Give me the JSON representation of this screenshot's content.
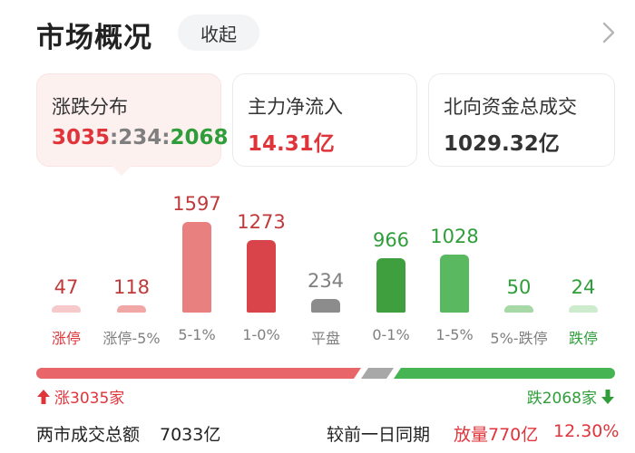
{
  "header": {
    "title": "市场概况",
    "collapse_label": "收起",
    "expand_icon": "chevron-right-icon"
  },
  "cards": [
    {
      "title": "涨跌分布",
      "up": "3035",
      "sep1": ":",
      "flat": "234",
      "sep2": ":",
      "down": "2068",
      "selected": true
    },
    {
      "title": "主力净流入",
      "value": "14.31亿",
      "value_color": "#e0343b"
    },
    {
      "title": "北向资金总成交",
      "value": "1029.32亿",
      "value_color": "#333333"
    }
  ],
  "chart_data": {
    "type": "bar",
    "categories": [
      "涨停",
      "涨停-5%",
      "5-1%",
      "1-0%",
      "平盘",
      "0-1%",
      "1-5%",
      "5%-跌停",
      "跌停"
    ],
    "values": [
      47,
      118,
      1597,
      1273,
      234,
      966,
      1028,
      50,
      24
    ],
    "value_labels": [
      "47",
      "118",
      "1597",
      "1273",
      "234",
      "966",
      "1028",
      "50",
      "24"
    ],
    "bar_colors": [
      "#f6caca",
      "#f0a7a5",
      "#e8807f",
      "#d8444a",
      "#8c8c8c",
      "#3f9f3f",
      "#5ab860",
      "#a6d9a6",
      "#cdebcd"
    ],
    "label_colors": [
      "#e0343b",
      "#7f7f7f",
      "#7f7f7f",
      "#7f7f7f",
      "#7f7f7f",
      "#7f7f7f",
      "#7f7f7f",
      "#7f7f7f",
      "#2f9e3a"
    ],
    "value_colors": [
      "#c0393b",
      "#c0393b",
      "#c0393b",
      "#c0393b",
      "#7f7f7f",
      "#2f9e3a",
      "#2f9e3a",
      "#2f9e3a",
      "#2f9e3a"
    ],
    "ylim": [
      0,
      1597
    ]
  },
  "ratio_bar": {
    "up": 3035,
    "flat": 234,
    "down": 2068
  },
  "summary": {
    "up_text": "涨3035家",
    "down_text": "跌2068家",
    "turnover_label": "两市成交总额",
    "turnover_value": "7033亿",
    "compare_label": "较前一日同期",
    "compare_volume": "放量770亿",
    "compare_pct": "12.30%"
  },
  "colors": {
    "up": "#e0343b",
    "down": "#2f9e3a",
    "flat": "#a8a8a8"
  }
}
